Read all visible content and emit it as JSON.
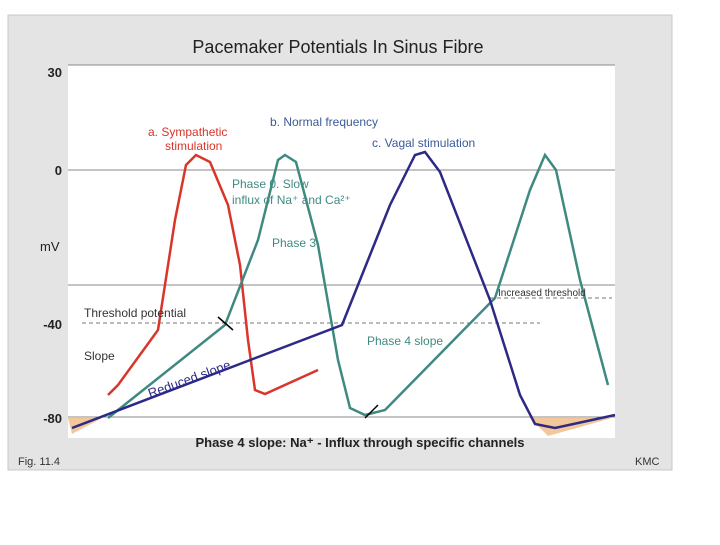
{
  "figure": {
    "title": "Pacemaker Potentials In Sinus Fibre",
    "axis": {
      "ticks": [
        "30",
        "0",
        "-40",
        "-80"
      ],
      "unit": "mV"
    },
    "labels": {
      "sympathetic": [
        "a. Sympathetic",
        "stimulation"
      ],
      "normal": "b. Normal frequency",
      "vagal": "c. Vagal stimulation",
      "phase0": [
        "Phase 0. Slow",
        "influx of Na⁺ and Ca²⁺"
      ],
      "phase3": "Phase 3",
      "increased_threshold": "Increased threshold",
      "threshold": "Threshold potential",
      "slope": "Slope",
      "phase4": "Phase 4 slope",
      "reduced": "Reduced slope"
    },
    "caption": "Phase 4 slope: Na⁺ - Influx through specific channels",
    "fig": "Fig. 11.4",
    "credit": "KMC"
  }
}
